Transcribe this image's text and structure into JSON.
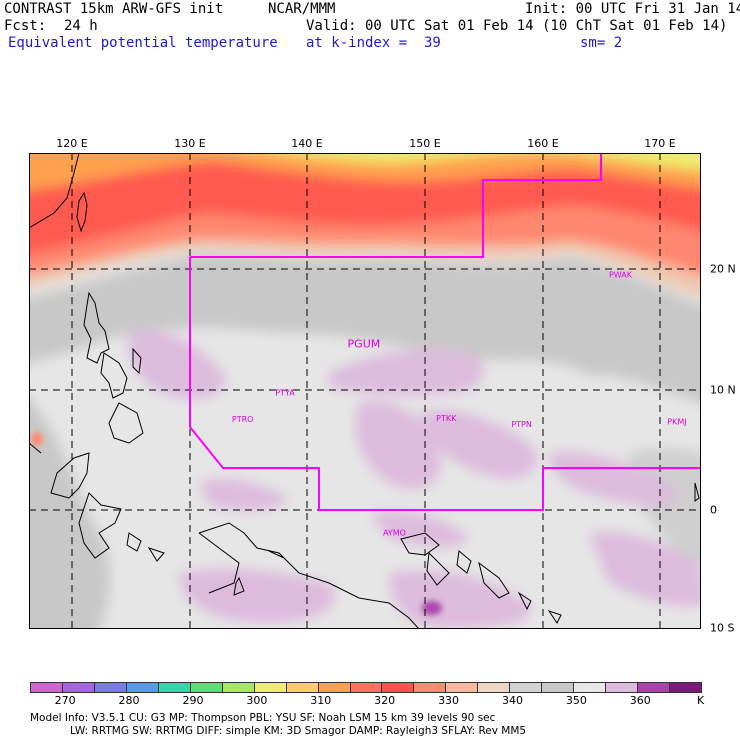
{
  "header": {
    "model_title": "CONTRAST 15km ARW-GFS init",
    "org": "NCAR/MMM",
    "init": "Init: 00 UTC Fri 31 Jan 14",
    "fcst_label": "Fcst:",
    "fcst_value": "24 h",
    "valid": "Valid: 00 UTC Sat 01 Feb 14 (10 ChT Sat 01 Feb 14)",
    "field": "Equivalent potential temperature",
    "level": "at k-index =  39",
    "smoothing": "sm= 2"
  },
  "lon_labels": [
    "120 E",
    "130 E",
    "140 E",
    "150 E",
    "160 E",
    "170 E"
  ],
  "lat_labels": [
    "20 N",
    "10 N",
    "0",
    "10 S"
  ],
  "stations": [
    {
      "id": "PGUM",
      "lon": 144.8,
      "lat": 13.5
    },
    {
      "id": "PWAK",
      "lon": 166.6,
      "lat": 19.3
    },
    {
      "id": "PTYA",
      "lon": 138.1,
      "lat": 9.5
    },
    {
      "id": "PTRO",
      "lon": 134.5,
      "lat": 7.3
    },
    {
      "id": "PTKK",
      "lon": 151.8,
      "lat": 7.4
    },
    {
      "id": "PTPN",
      "lon": 158.2,
      "lat": 6.9
    },
    {
      "id": "PKMJ",
      "lon": 171.4,
      "lat": 7.1
    },
    {
      "id": "AYMO",
      "lon": 147.4,
      "lat": -2.1
    }
  ],
  "colorbar": {
    "ticks": [
      "270",
      "280",
      "290",
      "300",
      "310",
      "320",
      "330",
      "340",
      "350",
      "360"
    ],
    "unit": "K",
    "colors": [
      "#cc66cc",
      "#a366dd",
      "#7a7ae6",
      "#5a9be8",
      "#33d6a8",
      "#55e07a",
      "#a6ea5c",
      "#eeee6e",
      "#ffcc66",
      "#ffa050",
      "#ff7060",
      "#ff5050",
      "#ff8870",
      "#f7b8a0",
      "#ecd6c8",
      "#d2d2d2",
      "#c8c8c8",
      "#e8e8e8",
      "#ddbbdd",
      "#aa44aa",
      "#7a1a7a"
    ]
  },
  "footer": {
    "line1": "Model Info: V3.5.1     CU: G3        MP: Thompson      PBL: YSU        SF: Noah LSM      15 km     39 levels    90 sec",
    "line2": "LW: RRTMG     SW: RRTMG   DIFF: simple KM: 3D Smagor DAMP: Rayleigh3   SFLAY: Rev MM5"
  },
  "colors": {
    "border_line": "#ff00ff",
    "header_blue": "#1c1cc8"
  }
}
